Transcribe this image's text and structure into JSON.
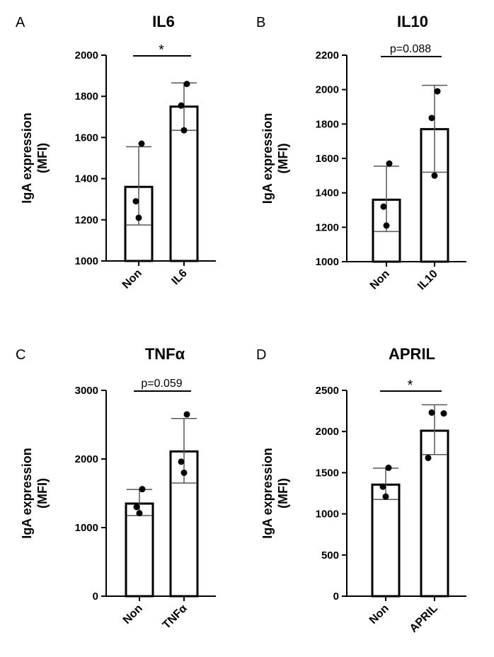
{
  "chart_data": [
    {
      "type": "bar",
      "panel": "A",
      "title": "IL6",
      "ylabel": "IgA expression\n(MFI)",
      "categories": [
        "Non",
        "IL6"
      ],
      "ylim": [
        1000,
        2000
      ],
      "yticks": [
        1000,
        1200,
        1400,
        1600,
        1800,
        2000
      ],
      "series": [
        {
          "values": [
            1360,
            1750
          ],
          "error": [
            [
              1175,
              1555
            ],
            [
              1635,
              1865
            ]
          ],
          "points": [
            [
              1210,
              1290,
              1570
            ],
            [
              1635,
              1755,
              1860
            ]
          ]
        }
      ],
      "significance": "*"
    },
    {
      "type": "bar",
      "panel": "B",
      "title": "IL10",
      "ylabel": "IgA expression\n(MFI)",
      "categories": [
        "Non",
        "IL10"
      ],
      "ylim": [
        1000,
        2200
      ],
      "yticks": [
        1000,
        1200,
        1400,
        1600,
        1800,
        2000,
        2200
      ],
      "series": [
        {
          "values": [
            1360,
            1770
          ],
          "error": [
            [
              1175,
              1555
            ],
            [
              1520,
              2025
            ]
          ],
          "points": [
            [
              1210,
              1320,
              1570
            ],
            [
              1500,
              1835,
              1990
            ]
          ]
        }
      ],
      "significance": "p=0.088"
    },
    {
      "type": "bar",
      "panel": "C",
      "title": "TNFα",
      "ylabel": "IgA expression\n(MFI)",
      "categories": [
        "Non",
        "TNFα"
      ],
      "ylim": [
        0,
        3000
      ],
      "yticks": [
        0,
        1000,
        2000,
        3000
      ],
      "series": [
        {
          "values": [
            1350,
            2110
          ],
          "error": [
            [
              1175,
              1555
            ],
            [
              1650,
              2590
            ]
          ],
          "points": [
            [
              1210,
              1300,
              1560
            ],
            [
              1800,
              1960,
              2650
            ]
          ]
        }
      ],
      "significance": "p=0.059"
    },
    {
      "type": "bar",
      "panel": "D",
      "title": "APRIL",
      "ylabel": "IgA expression\n(MFI)",
      "categories": [
        "Non",
        "APRIL"
      ],
      "ylim": [
        0,
        2500
      ],
      "yticks": [
        0,
        500,
        1000,
        1500,
        2000,
        2500
      ],
      "series": [
        {
          "values": [
            1355,
            2010
          ],
          "error": [
            [
              1175,
              1555
            ],
            [
              1720,
              2325
            ]
          ],
          "points": [
            [
              1210,
              1330,
              1560
            ],
            [
              1680,
              2230,
              2220
            ]
          ]
        }
      ],
      "significance": "*"
    }
  ]
}
